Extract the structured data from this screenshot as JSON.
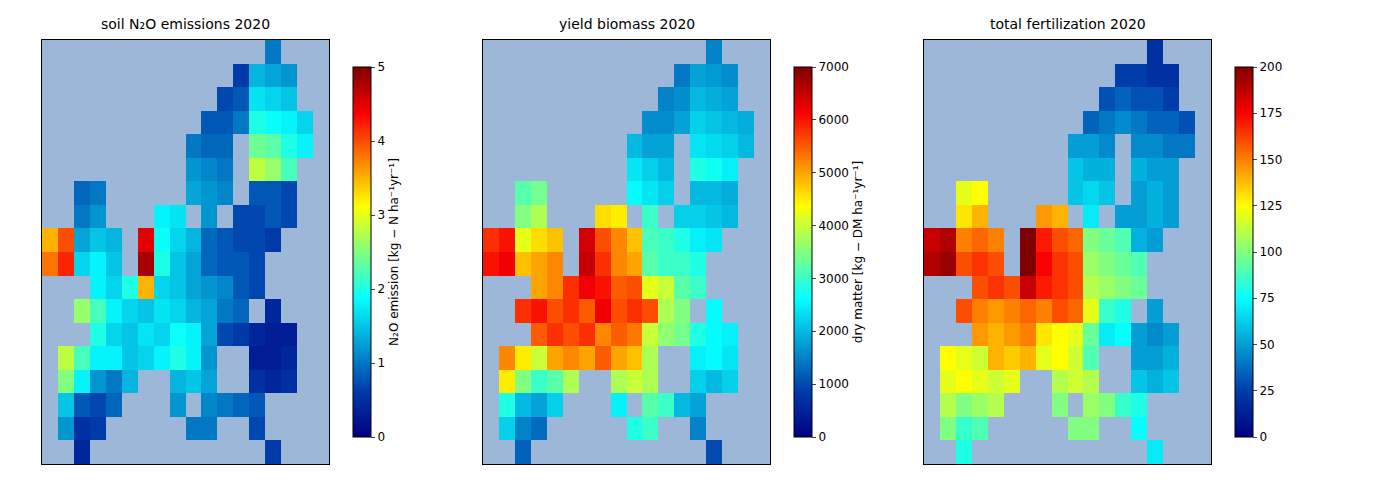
{
  "chart_data": [
    {
      "type": "heatmap",
      "title": "soil N₂O emissions 2020",
      "tick_labels": false,
      "x": [
        -10,
        -7.5,
        -5,
        -2.5,
        0,
        2.5,
        5,
        7.5,
        10,
        12.5,
        15,
        17.5,
        20,
        22.5,
        25,
        27.5,
        30,
        32.5
      ],
      "y": [
        36,
        38,
        40,
        42,
        44,
        46,
        48,
        50,
        52,
        54,
        56,
        58,
        60,
        62,
        64,
        66,
        68,
        70
      ],
      "cells": [
        [
          null,
          null,
          0.4,
          null,
          null,
          null,
          null,
          null,
          null,
          null,
          null,
          null,
          null,
          null,
          0.6,
          null,
          null,
          null
        ],
        [
          null,
          1.2,
          0.5,
          0.6,
          null,
          null,
          null,
          null,
          null,
          1.0,
          1.0,
          null,
          null,
          0.7,
          null,
          null,
          null,
          null
        ],
        [
          null,
          1.5,
          0.8,
          0.7,
          0.9,
          null,
          null,
          null,
          1.2,
          null,
          1.1,
          1.0,
          0.9,
          0.8,
          null,
          null,
          null,
          null
        ],
        [
          null,
          2.5,
          1.8,
          1.2,
          1.0,
          1.4,
          null,
          null,
          1.4,
          1.5,
          1.3,
          null,
          null,
          0.5,
          0.4,
          0.5,
          null,
          null
        ],
        [
          null,
          2.8,
          2.2,
          1.8,
          1.8,
          1.5,
          1.6,
          1.8,
          2.0,
          1.8,
          1.2,
          null,
          null,
          0.3,
          0.3,
          0.4,
          null,
          null
        ],
        [
          null,
          null,
          null,
          2.0,
          1.6,
          1.5,
          1.7,
          1.6,
          1.9,
          1.8,
          1.3,
          0.7,
          0.6,
          0.4,
          0.3,
          0.3,
          null,
          null
        ],
        [
          null,
          null,
          2.6,
          2.2,
          1.8,
          1.6,
          1.5,
          1.7,
          1.6,
          1.4,
          1.3,
          1.0,
          0.9,
          null,
          0.4,
          null,
          null,
          null
        ],
        [
          null,
          null,
          null,
          1.8,
          1.6,
          2.0,
          3.5,
          1.6,
          1.5,
          1.3,
          1.2,
          1.1,
          0.8,
          0.7,
          null,
          null,
          null,
          null
        ],
        [
          3.8,
          4.2,
          1.6,
          1.8,
          1.5,
          null,
          4.8,
          2.0,
          1.5,
          1.3,
          0.9,
          0.8,
          0.8,
          0.7,
          null,
          null,
          null,
          null
        ],
        [
          3.5,
          4.0,
          1.3,
          1.5,
          1.4,
          null,
          4.5,
          1.9,
          1.6,
          1.4,
          0.9,
          0.8,
          0.7,
          0.7,
          0.6,
          null,
          null,
          null
        ],
        [
          null,
          null,
          1.0,
          1.2,
          null,
          null,
          null,
          1.8,
          1.7,
          null,
          1.2,
          null,
          0.7,
          0.7,
          0.8,
          0.7,
          null,
          null
        ],
        [
          null,
          null,
          0.9,
          1.0,
          null,
          null,
          null,
          null,
          null,
          1.3,
          1.2,
          1.1,
          null,
          0.8,
          0.8,
          0.7,
          null,
          null
        ],
        [
          null,
          null,
          null,
          null,
          null,
          null,
          null,
          null,
          null,
          1.2,
          1.1,
          1.0,
          null,
          2.8,
          2.6,
          2.2,
          null,
          null
        ],
        [
          null,
          null,
          null,
          null,
          null,
          null,
          null,
          null,
          null,
          1.0,
          0.9,
          0.9,
          null,
          2.4,
          2.3,
          2.0,
          1.8,
          null
        ],
        [
          null,
          null,
          null,
          null,
          null,
          null,
          null,
          null,
          null,
          null,
          0.8,
          0.8,
          1.0,
          2.0,
          1.9,
          1.8,
          1.6,
          null
        ],
        [
          null,
          null,
          null,
          null,
          null,
          null,
          null,
          null,
          null,
          null,
          null,
          0.7,
          0.8,
          1.7,
          1.6,
          1.5,
          null,
          null
        ],
        [
          null,
          null,
          null,
          null,
          null,
          null,
          null,
          null,
          null,
          null,
          null,
          null,
          0.6,
          1.4,
          1.3,
          1.2,
          null,
          null
        ],
        [
          null,
          null,
          null,
          null,
          null,
          null,
          null,
          null,
          null,
          null,
          null,
          null,
          null,
          null,
          1.0,
          null,
          null,
          null
        ]
      ],
      "colorbar": {
        "title": "N₂O emission [kg − N ha⁻¹yr⁻¹]",
        "range": [
          0,
          5
        ],
        "ticks": [
          0,
          1,
          2,
          3,
          4,
          5
        ]
      }
    },
    {
      "type": "heatmap",
      "title": "yield biomass 2020",
      "tick_labels": false,
      "x": [
        -10,
        -7.5,
        -5,
        -2.5,
        0,
        2.5,
        5,
        7.5,
        10,
        12.5,
        15,
        17.5,
        20,
        22.5,
        25,
        27.5,
        30,
        32.5
      ],
      "y": [
        36,
        38,
        40,
        42,
        44,
        46,
        48,
        50,
        52,
        54,
        56,
        58,
        60,
        62,
        64,
        66,
        68,
        70
      ],
      "cells": [
        [
          null,
          null,
          1200,
          null,
          null,
          null,
          null,
          null,
          null,
          null,
          null,
          null,
          null,
          null,
          1000,
          null,
          null,
          null
        ],
        [
          null,
          2200,
          1500,
          1300,
          null,
          null,
          null,
          null,
          null,
          2800,
          3000,
          null,
          null,
          1500,
          null,
          null,
          null,
          null
        ],
        [
          null,
          2800,
          2000,
          1800,
          2200,
          null,
          null,
          null,
          2500,
          null,
          3200,
          3000,
          2000,
          1800,
          null,
          null,
          null,
          null
        ],
        [
          null,
          4500,
          3500,
          3000,
          3200,
          3800,
          null,
          null,
          3800,
          4000,
          3800,
          null,
          null,
          2200,
          2000,
          2200,
          null,
          null
        ],
        [
          null,
          5200,
          4500,
          4000,
          5000,
          5200,
          5000,
          5500,
          5000,
          4800,
          3800,
          null,
          null,
          2500,
          2600,
          2400,
          null,
          null
        ],
        [
          null,
          null,
          null,
          5500,
          5800,
          5600,
          5800,
          5200,
          5500,
          5300,
          4000,
          3600,
          3400,
          2800,
          2600,
          2500,
          null,
          null
        ],
        [
          null,
          null,
          5800,
          6000,
          5600,
          5800,
          5500,
          6200,
          5600,
          5800,
          5600,
          3800,
          3500,
          null,
          2600,
          null,
          null,
          null
        ],
        [
          null,
          null,
          null,
          5000,
          5200,
          5800,
          6200,
          6000,
          5500,
          5600,
          4200,
          4000,
          3200,
          3000,
          null,
          null,
          null,
          null
        ],
        [
          6000,
          6200,
          4800,
          5000,
          5200,
          null,
          6500,
          5800,
          5200,
          5000,
          3200,
          3000,
          3000,
          2800,
          null,
          null,
          null,
          null
        ],
        [
          5800,
          6000,
          4200,
          4600,
          4800,
          null,
          6400,
          5600,
          5200,
          4800,
          3100,
          3000,
          2800,
          2500,
          2400,
          null,
          null,
          null
        ],
        [
          null,
          null,
          3500,
          3800,
          null,
          null,
          null,
          4600,
          4500,
          null,
          3000,
          null,
          2200,
          2200,
          2100,
          2000,
          null,
          null
        ],
        [
          null,
          null,
          3200,
          3400,
          null,
          null,
          null,
          null,
          null,
          2600,
          2400,
          2200,
          null,
          2000,
          2000,
          1900,
          null,
          null
        ],
        [
          null,
          null,
          null,
          null,
          null,
          null,
          null,
          null,
          null,
          2400,
          2200,
          2000,
          null,
          2800,
          2700,
          2500,
          null,
          null
        ],
        [
          null,
          null,
          null,
          null,
          null,
          null,
          null,
          null,
          null,
          2000,
          1800,
          1800,
          null,
          2400,
          2300,
          2200,
          2000,
          null
        ],
        [
          null,
          null,
          null,
          null,
          null,
          null,
          null,
          null,
          null,
          null,
          1600,
          1600,
          1800,
          2200,
          2100,
          2000,
          1900,
          null
        ],
        [
          null,
          null,
          null,
          null,
          null,
          null,
          null,
          null,
          null,
          null,
          null,
          1500,
          1600,
          2000,
          1900,
          1800,
          null,
          null
        ],
        [
          null,
          null,
          null,
          null,
          null,
          null,
          null,
          null,
          null,
          null,
          null,
          null,
          1400,
          1800,
          1700,
          1600,
          null,
          null
        ],
        [
          null,
          null,
          null,
          null,
          null,
          null,
          null,
          null,
          null,
          null,
          null,
          null,
          null,
          null,
          1500,
          null,
          null,
          null
        ]
      ],
      "colorbar": {
        "title": "dry matter [kg − DM ha⁻¹yr⁻¹]",
        "range": [
          0,
          7000
        ],
        "ticks": [
          0,
          1000,
          2000,
          3000,
          4000,
          5000,
          6000,
          7000
        ]
      }
    },
    {
      "type": "heatmap",
      "title": "total fertilization 2020",
      "tick_labels": false,
      "x": [
        -10,
        -7.5,
        -5,
        -2.5,
        0,
        2.5,
        5,
        7.5,
        10,
        12.5,
        15,
        17.5,
        20,
        22.5,
        25,
        27.5,
        30,
        32.5
      ],
      "y": [
        36,
        38,
        40,
        42,
        44,
        46,
        48,
        50,
        52,
        54,
        56,
        58,
        60,
        62,
        64,
        66,
        68,
        70
      ],
      "cells": [
        [
          null,
          null,
          80,
          null,
          null,
          null,
          null,
          null,
          null,
          null,
          null,
          null,
          null,
          null,
          70,
          null,
          null,
          null
        ],
        [
          null,
          100,
          85,
          90,
          null,
          null,
          null,
          null,
          null,
          100,
          100,
          null,
          null,
          75,
          null,
          null,
          null,
          null
        ],
        [
          null,
          110,
          100,
          105,
          110,
          null,
          null,
          null,
          100,
          null,
          105,
          100,
          85,
          80,
          null,
          null,
          null,
          null
        ],
        [
          null,
          120,
          125,
          120,
          115,
          120,
          null,
          null,
          110,
          115,
          110,
          null,
          null,
          60,
          55,
          60,
          null,
          null
        ],
        [
          null,
          125,
          120,
          115,
          140,
          135,
          140,
          120,
          125,
          115,
          90,
          null,
          null,
          50,
          50,
          55,
          null,
          null
        ],
        [
          null,
          null,
          null,
          145,
          140,
          145,
          150,
          130,
          125,
          120,
          95,
          70,
          75,
          50,
          45,
          50,
          null,
          null
        ],
        [
          null,
          null,
          160,
          150,
          145,
          150,
          155,
          150,
          160,
          155,
          120,
          85,
          80,
          null,
          50,
          null,
          null,
          null
        ],
        [
          null,
          null,
          null,
          160,
          165,
          160,
          185,
          170,
          165,
          160,
          110,
          105,
          100,
          95,
          null,
          null,
          null,
          null
        ],
        [
          190,
          195,
          160,
          165,
          160,
          null,
          210,
          175,
          165,
          160,
          105,
          100,
          95,
          90,
          null,
          null,
          null,
          null
        ],
        [
          185,
          190,
          150,
          155,
          150,
          null,
          205,
          170,
          160,
          155,
          100,
          95,
          90,
          55,
          50,
          null,
          null,
          null
        ],
        [
          null,
          null,
          130,
          140,
          null,
          null,
          null,
          145,
          140,
          null,
          70,
          null,
          50,
          50,
          55,
          50,
          null,
          null
        ],
        [
          null,
          null,
          120,
          125,
          null,
          null,
          null,
          null,
          null,
          60,
          65,
          60,
          null,
          50,
          55,
          50,
          null,
          null
        ],
        [
          null,
          null,
          null,
          null,
          null,
          null,
          null,
          null,
          null,
          60,
          55,
          55,
          null,
          55,
          50,
          50,
          null,
          null
        ],
        [
          null,
          null,
          null,
          null,
          null,
          null,
          null,
          null,
          null,
          50,
          50,
          45,
          null,
          45,
          45,
          40,
          40,
          null
        ],
        [
          null,
          null,
          null,
          null,
          null,
          null,
          null,
          null,
          null,
          null,
          35,
          40,
          45,
          40,
          35,
          35,
          30,
          null
        ],
        [
          null,
          null,
          null,
          null,
          null,
          null,
          null,
          null,
          null,
          null,
          null,
          30,
          35,
          30,
          30,
          25,
          null,
          null
        ],
        [
          null,
          null,
          null,
          null,
          null,
          null,
          null,
          null,
          null,
          null,
          null,
          null,
          25,
          25,
          20,
          20,
          null,
          null
        ],
        [
          null,
          null,
          null,
          null,
          null,
          null,
          null,
          null,
          null,
          null,
          null,
          null,
          null,
          null,
          20,
          null,
          null,
          null
        ]
      ],
      "colorbar": {
        "range": [
          0,
          200
        ],
        "ticks": [
          0,
          25,
          50,
          75,
          100,
          125,
          150,
          175,
          200
        ]
      }
    }
  ]
}
